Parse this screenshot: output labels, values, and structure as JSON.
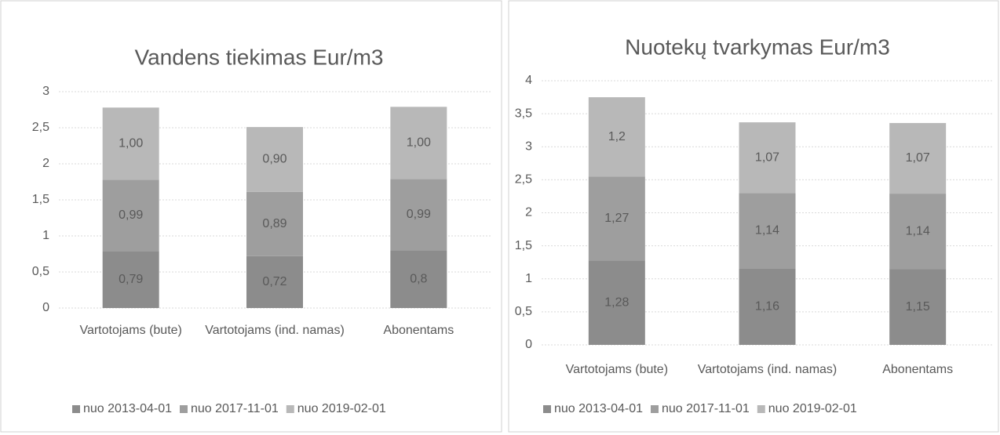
{
  "chart_data": [
    {
      "type": "bar",
      "stacked": true,
      "title": "Vandens tiekimas Eur/m3",
      "categories": [
        "Vartotojams (bute)",
        "Vartotojams (ind. namas)",
        "Abonentams"
      ],
      "series": [
        {
          "name": "nuo 2013-04-01",
          "color": "#8c8c8c",
          "values": [
            0.79,
            0.72,
            0.8
          ],
          "value_labels": [
            "0,79",
            "0,72",
            "0,8"
          ]
        },
        {
          "name": "nuo 2017-11-01",
          "color": "#9e9e9e",
          "values": [
            0.99,
            0.89,
            0.99
          ],
          "value_labels": [
            "0,99",
            "0,89",
            "0,99"
          ]
        },
        {
          "name": "nuo 2019-02-01",
          "color": "#b8b8b8",
          "values": [
            1.0,
            0.9,
            1.0
          ],
          "value_labels": [
            "1,00",
            "0,90",
            "1,00"
          ]
        }
      ],
      "ylim": [
        0,
        3
      ],
      "yticks": [
        0,
        {
          "value": 0.5,
          "label": "0,5"
        },
        1,
        {
          "value": 1.5,
          "label": "1,5"
        },
        2,
        {
          "value": 2.5,
          "label": "2,5"
        },
        3
      ],
      "grid": true,
      "legend": "bottom"
    },
    {
      "type": "bar",
      "stacked": true,
      "title": "Nuotekų tvarkymas Eur/m3",
      "categories": [
        "Vartotojams (bute)",
        "Vartotojams (ind. namas)",
        "Abonentams"
      ],
      "series": [
        {
          "name": "nuo 2013-04-01",
          "color": "#8c8c8c",
          "values": [
            1.28,
            1.16,
            1.15
          ],
          "value_labels": [
            "1,28",
            "1,16",
            "1,15"
          ]
        },
        {
          "name": "nuo 2017-11-01",
          "color": "#9e9e9e",
          "values": [
            1.27,
            1.14,
            1.14
          ],
          "value_labels": [
            "1,27",
            "1,14",
            "1,14"
          ]
        },
        {
          "name": "nuo 2019-02-01",
          "color": "#b8b8b8",
          "values": [
            1.2,
            1.07,
            1.07
          ],
          "value_labels": [
            "1,2",
            "1,07",
            "1,07"
          ]
        }
      ],
      "ylim": [
        0,
        4
      ],
      "yticks": [
        0,
        {
          "value": 0.5,
          "label": "0,5"
        },
        1,
        {
          "value": 1.5,
          "label": "1,5"
        },
        2,
        {
          "value": 2.5,
          "label": "2,5"
        },
        3,
        {
          "value": 3.5,
          "label": "3,5"
        },
        4
      ],
      "grid": true,
      "legend": "bottom"
    }
  ]
}
